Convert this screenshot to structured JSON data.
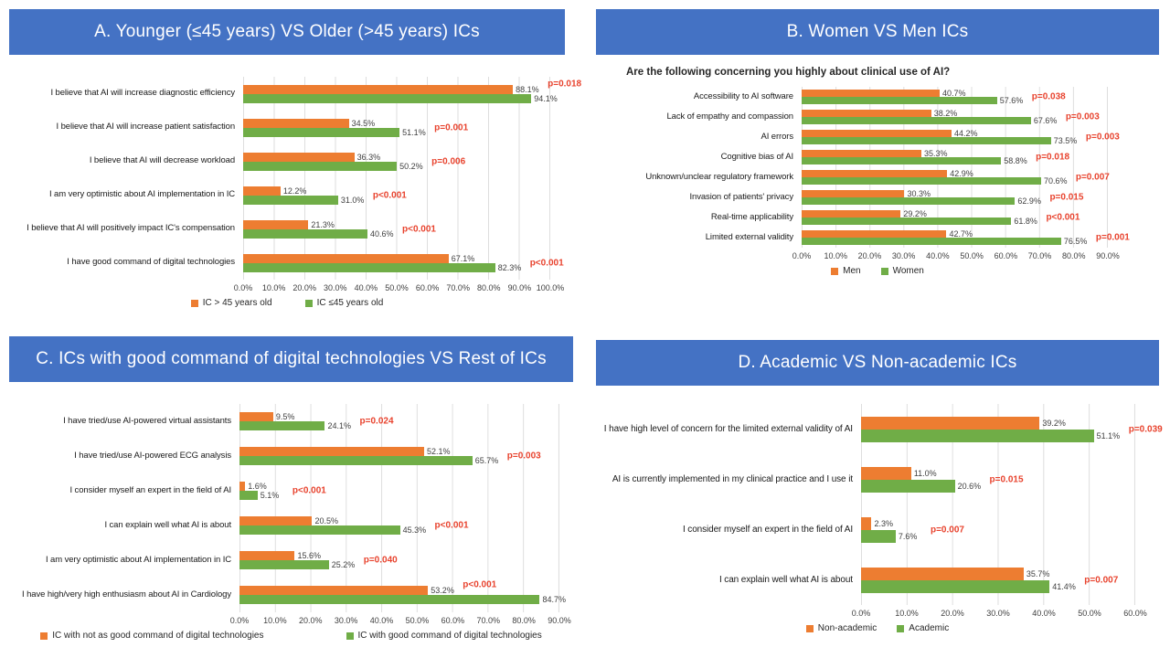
{
  "colors": {
    "banner_blue": "#4472C4",
    "bar_orange": "#ED7D31",
    "bar_green": "#70AD47",
    "p_value_red": "#E8432E"
  },
  "chart_data": [
    {
      "type": "bar",
      "orientation": "horizontal",
      "panel_label": "A",
      "title": "A. Younger (≤45 years) VS Older (>45 years) ICs",
      "subtitle": "",
      "categories": [
        "I believe that AI will increase diagnostic efficiency",
        "I believe that AI will increase patient satisfaction",
        "I believe that AI will decrease workload",
        "I am very optimistic about AI implementation in IC",
        "I believe that AI will positively impact IC's compensation",
        "I have good command of digital technologies"
      ],
      "series": [
        {
          "name": "IC > 45 years old",
          "color": "#ED7D31",
          "values": [
            88.1,
            34.5,
            36.3,
            12.2,
            21.3,
            67.1
          ]
        },
        {
          "name": "IC ≤45 years old",
          "color": "#70AD47",
          "values": [
            94.1,
            51.1,
            50.2,
            31.0,
            40.6,
            82.3
          ]
        }
      ],
      "p_values": [
        "p=0.018",
        "p=0.001",
        "p=0.006",
        "p<0.001",
        "p<0.001",
        "p<0.001"
      ],
      "xlim": [
        0,
        100
      ],
      "tick_step": 10,
      "axis_ticks": [
        "0.0%",
        "10.0%",
        "20.0%",
        "30.0%",
        "40.0%",
        "50.0%",
        "60.0%",
        "70.0%",
        "80.0%",
        "90.0%",
        "100.0%"
      ],
      "grid": true,
      "legend_position": "bottom"
    },
    {
      "type": "bar",
      "orientation": "horizontal",
      "panel_label": "B",
      "title": "B. Women VS Men ICs",
      "subtitle": "Are the following concerning you highly about clinical use of AI?",
      "categories": [
        "Accessibility to AI software",
        "Lack of empathy and compassion",
        "AI errors",
        "Cognitive bias of AI",
        "Unknown/unclear regulatory framework",
        "Invasion of patients' privacy",
        "Real-time applicability",
        "Limited external validity"
      ],
      "series": [
        {
          "name": "Men",
          "color": "#ED7D31",
          "values": [
            40.7,
            38.2,
            44.2,
            35.3,
            42.9,
            30.3,
            29.2,
            42.7
          ]
        },
        {
          "name": "Women",
          "color": "#70AD47",
          "values": [
            57.6,
            67.6,
            73.5,
            58.8,
            70.6,
            62.9,
            61.8,
            76.5
          ]
        }
      ],
      "p_values": [
        "p=0.038",
        "p=0.003",
        "p=0.003",
        "p=0.018",
        "p=0.007",
        "p=0.015",
        "p<0.001",
        "p=0.001"
      ],
      "xlim": [
        0,
        90
      ],
      "tick_step": 10,
      "axis_ticks": [
        "0.0%",
        "10.0%",
        "20.0%",
        "30.0%",
        "40.0%",
        "50.0%",
        "60.0%",
        "70.0%",
        "80.0%",
        "90.0%"
      ],
      "grid": true,
      "legend_position": "bottom"
    },
    {
      "type": "bar",
      "orientation": "horizontal",
      "panel_label": "C",
      "title": "C. ICs with good command of digital technologies VS Rest of ICs",
      "subtitle": "",
      "categories": [
        "I have tried/use AI-powered virtual assistants",
        "I have tried/use AI-powered ECG analysis",
        "I consider myself an expert in the field of AI",
        "I can explain well what AI is about",
        "I am very optimistic about AI implementation in IC",
        "I have high/very high enthusiasm about AI in Cardiology"
      ],
      "series": [
        {
          "name": "IC with not as good command of digital technologies",
          "color": "#ED7D31",
          "values": [
            9.5,
            52.1,
            1.6,
            20.5,
            15.6,
            53.2
          ]
        },
        {
          "name": "IC with good command of digital technologies",
          "color": "#70AD47",
          "values": [
            24.1,
            65.7,
            5.1,
            45.3,
            25.2,
            84.7
          ]
        }
      ],
      "p_values": [
        "p=0.024",
        "p=0.003",
        "p<0.001",
        "p<0.001",
        "p=0.040",
        "p<0.001"
      ],
      "xlim": [
        0,
        90
      ],
      "tick_step": 10,
      "axis_ticks": [
        "0.0%",
        "10.0%",
        "20.0%",
        "30.0%",
        "40.0%",
        "50.0%",
        "60.0%",
        "70.0%",
        "80.0%",
        "90.0%"
      ],
      "grid": true,
      "legend_position": "bottom"
    },
    {
      "type": "bar",
      "orientation": "horizontal",
      "panel_label": "D",
      "title": "D. Academic VS Non-academic ICs",
      "subtitle": "",
      "categories": [
        "I have high level of concern for the limited external validity of AI",
        "AI is currently implemented in my clinical practice and I use it",
        "I consider myself an expert in the field of AI",
        "I can explain well what AI is about"
      ],
      "series": [
        {
          "name": "Non-academic",
          "color": "#ED7D31",
          "values": [
            39.2,
            11.0,
            2.3,
            35.7
          ]
        },
        {
          "name": "Academic",
          "color": "#70AD47",
          "values": [
            51.1,
            20.6,
            7.6,
            41.4
          ]
        }
      ],
      "p_values": [
        "p=0.039",
        "p=0.015",
        "p=0.007",
        "p=0.007"
      ],
      "xlim": [
        0,
        60
      ],
      "tick_step": 10,
      "axis_ticks": [
        "0.0%",
        "10.0%",
        "20.0%",
        "30.0%",
        "40.0%",
        "50.0%",
        "60.0%"
      ],
      "grid": true,
      "legend_position": "bottom"
    }
  ]
}
